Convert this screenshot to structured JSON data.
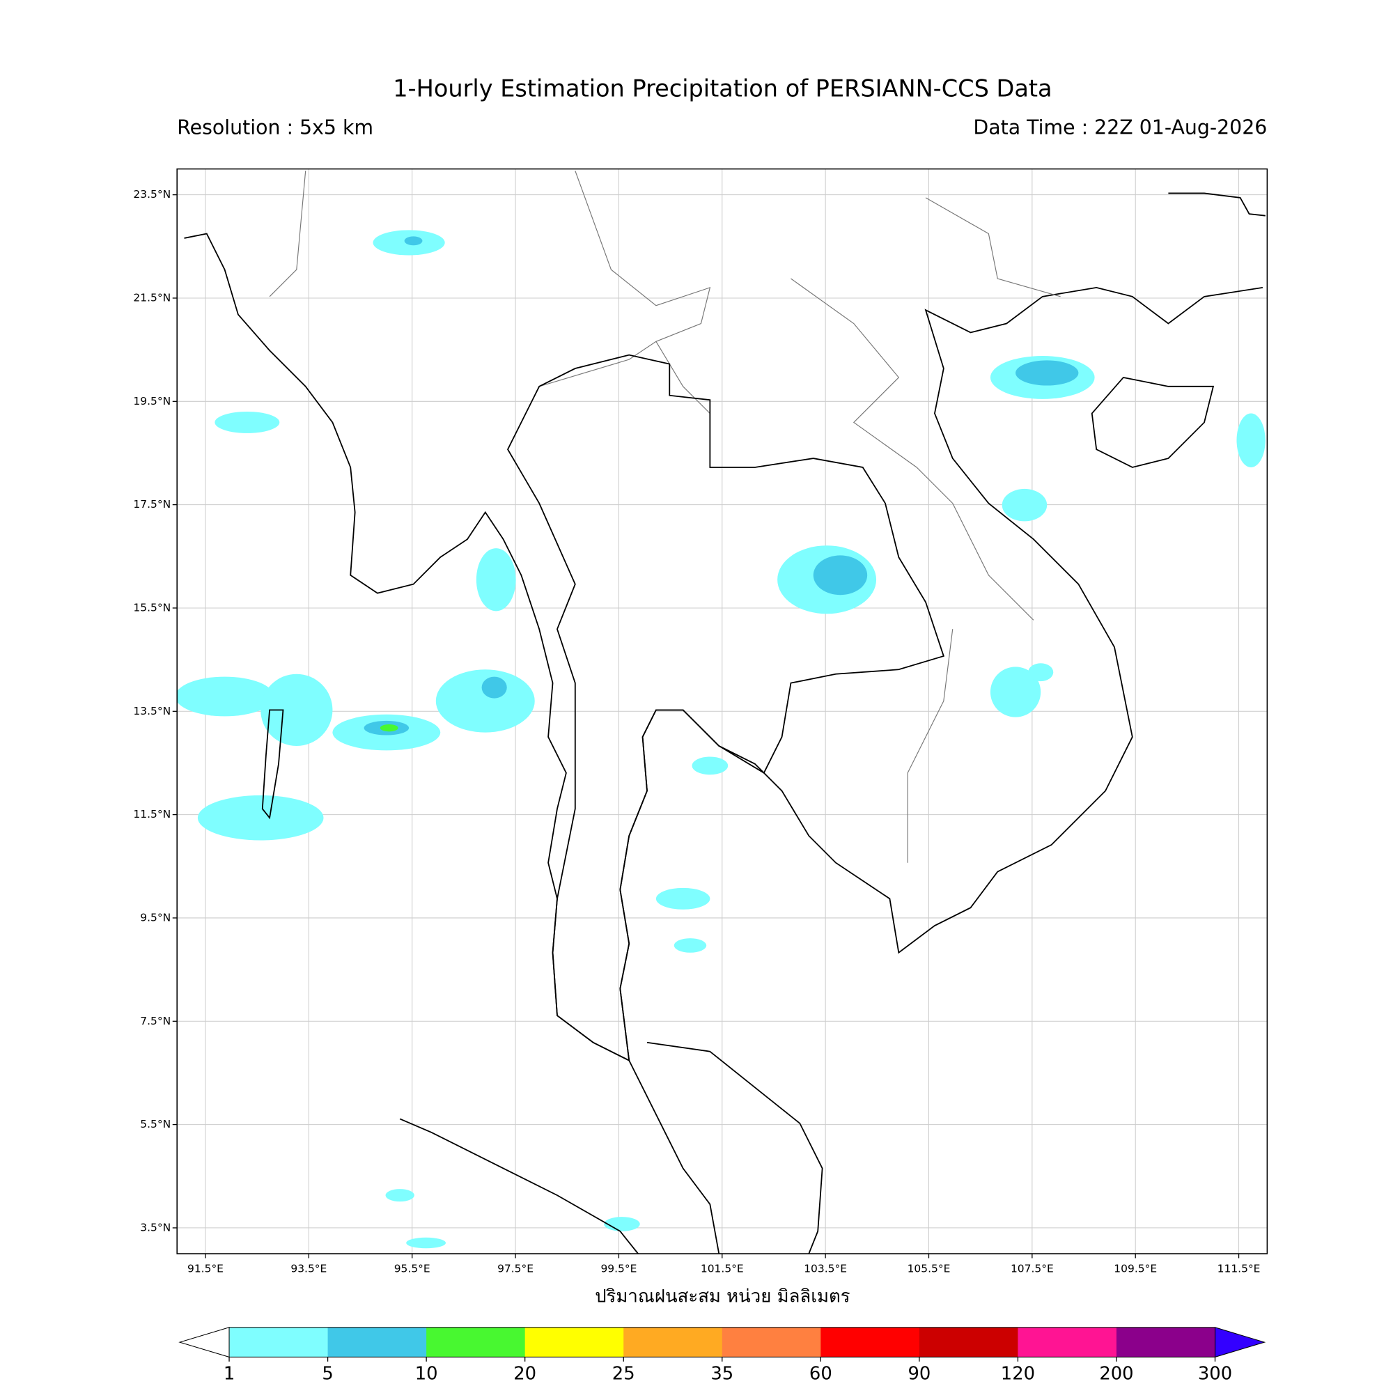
{
  "title": "1-Hourly Estimation Precipitation of PERSIANN-CCS Data",
  "resolution": "Resolution : 5x5 km",
  "data_time": "Data Time : 22Z 01-Aug-2026",
  "map": {
    "xlim": [
      90.95,
      112.05
    ],
    "ylim": [
      3.0,
      24.0
    ],
    "grid": true,
    "xticks": [
      {
        "value": 91.5,
        "label": "91.5°E"
      },
      {
        "value": 93.5,
        "label": "93.5°E"
      },
      {
        "value": 95.5,
        "label": "95.5°E"
      },
      {
        "value": 97.5,
        "label": "97.5°E"
      },
      {
        "value": 99.5,
        "label": "99.5°E"
      },
      {
        "value": 101.5,
        "label": "101.5°E"
      },
      {
        "value": 103.5,
        "label": "103.5°E"
      },
      {
        "value": 105.5,
        "label": "105.5°E"
      },
      {
        "value": 107.5,
        "label": "107.5°E"
      },
      {
        "value": 109.5,
        "label": "109.5°E"
      },
      {
        "value": 111.5,
        "label": "111.5°E"
      }
    ],
    "yticks": [
      {
        "value": 23.5,
        "label": "23.5°N"
      },
      {
        "value": 21.5,
        "label": "21.5°N"
      },
      {
        "value": 19.5,
        "label": "19.5°N"
      },
      {
        "value": 17.5,
        "label": "17.5°N"
      },
      {
        "value": 15.5,
        "label": "15.5°N"
      },
      {
        "value": 13.5,
        "label": "13.5°N"
      },
      {
        "value": 11.5,
        "label": "11.5°N"
      },
      {
        "value": 9.5,
        "label": "9.5°N"
      },
      {
        "value": 7.5,
        "label": "7.5°N"
      },
      {
        "value": 5.5,
        "label": "5.5°N"
      },
      {
        "value": 3.5,
        "label": "3.5°N"
      }
    ]
  },
  "colorbar": {
    "label": "ปริมาณฝนสะสม หน่วย มิลลิเมตร",
    "levels": [
      1,
      5,
      10,
      20,
      25,
      35,
      60,
      90,
      120,
      200,
      300
    ],
    "colors": [
      "#7ffeff",
      "#40c8e8",
      "#48f830",
      "#ffff00",
      "#ffaa22",
      "#ff8040",
      "#ff0000",
      "#cc0000",
      "#ff1493",
      "#8b008b"
    ],
    "under_color": "#ffffff",
    "over_color": "#3300ff"
  }
}
